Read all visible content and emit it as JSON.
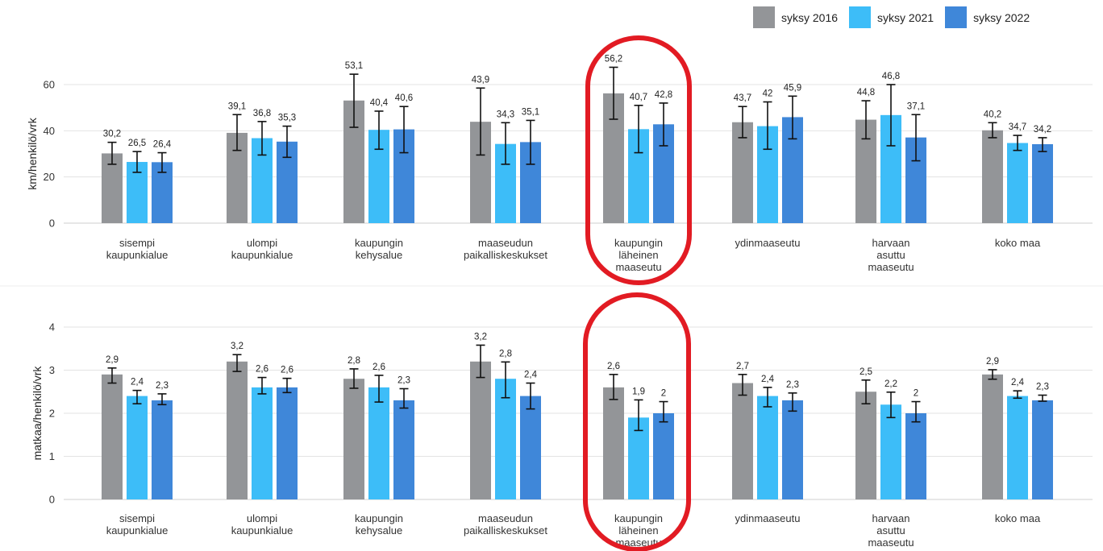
{
  "legend": [
    "syksy 2016",
    "syksy 2021",
    "syksy 2022"
  ],
  "colors": {
    "syksy 2016": "#939598",
    "syksy 2021": "#3dbdf8",
    "syksy 2022": "#3f87d9",
    "highlight": "#e21b23"
  },
  "chart_data": [
    {
      "type": "bar",
      "ylabel": "km/henkilö/vrk",
      "ylim": [
        0,
        60
      ],
      "yticks": [
        0,
        20,
        40,
        60
      ],
      "grid": true,
      "legend_position": "top-right",
      "categories": [
        [
          "sisempi",
          "kaupunkialue"
        ],
        [
          "ulompi",
          "kaupunkialue"
        ],
        [
          "kaupungin",
          "kehysalue"
        ],
        [
          "maaseudun",
          "paikalliskeskukset"
        ],
        [
          "kaupungin",
          "läheinen",
          "maaseutu"
        ],
        [
          "ydinmaaseutu"
        ],
        [
          "harvaan",
          "asuttu",
          "maaseutu"
        ],
        [
          "koko maa"
        ]
      ],
      "series": [
        {
          "name": "syksy 2016",
          "values": [
            30.2,
            39.1,
            53.1,
            43.9,
            56.2,
            43.7,
            44.8,
            40.2
          ],
          "labels": [
            "30,2",
            "39,1",
            "53,1",
            "43,9",
            "56,2",
            "43,7",
            "44,8",
            "40,2"
          ],
          "err_low": [
            25.5,
            31.5,
            41.5,
            29.5,
            45.0,
            37.0,
            36.5,
            37.0
          ],
          "err_high": [
            35.0,
            47.0,
            64.5,
            58.5,
            67.5,
            50.5,
            53.0,
            43.5
          ]
        },
        {
          "name": "syksy 2021",
          "values": [
            26.5,
            36.8,
            40.4,
            34.3,
            40.7,
            42.0,
            46.8,
            34.7
          ],
          "labels": [
            "26,5",
            "36,8",
            "40,4",
            "34,3",
            "40,7",
            "42",
            "46,8",
            "34,7"
          ],
          "err_low": [
            22.0,
            29.5,
            32.0,
            25.5,
            30.5,
            32.0,
            33.5,
            31.5
          ],
          "err_high": [
            31.0,
            44.0,
            48.5,
            43.5,
            51.0,
            52.5,
            60.0,
            38.0
          ]
        },
        {
          "name": "syksy 2022",
          "values": [
            26.4,
            35.3,
            40.6,
            35.1,
            42.8,
            45.9,
            37.1,
            34.2
          ],
          "labels": [
            "26,4",
            "35,3",
            "40,6",
            "35,1",
            "42,8",
            "45,9",
            "37,1",
            "34,2"
          ],
          "err_low": [
            22.0,
            28.5,
            30.5,
            25.5,
            33.5,
            36.5,
            27.0,
            31.0
          ],
          "err_high": [
            30.5,
            42.0,
            50.5,
            44.5,
            52.0,
            55.0,
            47.0,
            37.0
          ]
        }
      ],
      "highlight_category": 4
    },
    {
      "type": "bar",
      "ylabel": "matkaa/henkilö/vrk",
      "ylim": [
        0,
        4
      ],
      "yticks": [
        0,
        1,
        2,
        3,
        4
      ],
      "grid": true,
      "categories": [
        [
          "sisempi",
          "kaupunkialue"
        ],
        [
          "ulompi",
          "kaupunkialue"
        ],
        [
          "kaupungin",
          "kehysalue"
        ],
        [
          "maaseudun",
          "paikalliskeskukset"
        ],
        [
          "kaupungin",
          "läheinen",
          "maaseutu"
        ],
        [
          "ydinmaaseutu"
        ],
        [
          "harvaan",
          "asuttu",
          "maaseutu"
        ],
        [
          "koko maa"
        ]
      ],
      "series": [
        {
          "name": "syksy 2016",
          "values": [
            2.9,
            3.2,
            2.8,
            3.2,
            2.6,
            2.7,
            2.5,
            2.9
          ],
          "labels": [
            "2,9",
            "3,2",
            "2,8",
            "3,2",
            "2,6",
            "2,7",
            "2,5",
            "2,9"
          ],
          "err_low": [
            2.7,
            2.97,
            2.58,
            2.83,
            2.32,
            2.42,
            2.22,
            2.79
          ],
          "err_high": [
            3.05,
            3.36,
            3.03,
            3.58,
            2.9,
            2.9,
            2.77,
            3.01
          ]
        },
        {
          "name": "syksy 2021",
          "values": [
            2.4,
            2.6,
            2.6,
            2.8,
            1.9,
            2.4,
            2.2,
            2.4
          ],
          "labels": [
            "2,4",
            "2,6",
            "2,6",
            "2,8",
            "1,9",
            "2,4",
            "2,2",
            "2,4"
          ],
          "err_low": [
            2.22,
            2.45,
            2.26,
            2.36,
            1.6,
            2.15,
            1.9,
            2.35
          ],
          "err_high": [
            2.53,
            2.83,
            2.88,
            3.19,
            2.31,
            2.6,
            2.49,
            2.52
          ]
        },
        {
          "name": "syksy 2022",
          "values": [
            2.3,
            2.6,
            2.3,
            2.4,
            2.0,
            2.3,
            2.0,
            2.3
          ],
          "labels": [
            "2,3",
            "2,6",
            "2,3",
            "2,4",
            "2",
            "2,3",
            "2",
            "2,3"
          ],
          "err_low": [
            2.2,
            2.48,
            2.12,
            2.1,
            1.8,
            2.05,
            1.8,
            2.28
          ],
          "err_high": [
            2.45,
            2.81,
            2.57,
            2.7,
            2.27,
            2.47,
            2.27,
            2.42
          ]
        }
      ],
      "highlight_category": 4
    }
  ]
}
